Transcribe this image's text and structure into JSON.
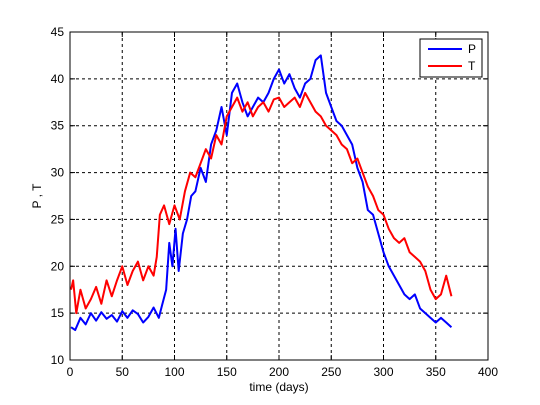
{
  "chart_data": {
    "type": "line",
    "xlabel": "time (days)",
    "ylabel": "P , T",
    "xlim": [
      0,
      400
    ],
    "ylim": [
      10,
      45
    ],
    "xticks": [
      "0",
      "50",
      "100",
      "150",
      "200",
      "250",
      "300",
      "350",
      "400"
    ],
    "yticks": [
      "10",
      "15",
      "20",
      "25",
      "30",
      "35",
      "40",
      "45"
    ],
    "grid": true,
    "legend_position": "top-right",
    "series": [
      {
        "name": "P",
        "color": "#0000ff",
        "x": [
          1,
          5,
          10,
          15,
          20,
          25,
          30,
          35,
          40,
          45,
          50,
          55,
          60,
          65,
          70,
          75,
          80,
          85,
          88,
          92,
          95,
          98,
          101,
          104,
          108,
          112,
          116,
          120,
          125,
          130,
          135,
          140,
          145,
          150,
          155,
          160,
          165,
          170,
          175,
          180,
          185,
          190,
          195,
          200,
          205,
          210,
          215,
          220,
          225,
          230,
          235,
          240,
          245,
          250,
          255,
          260,
          265,
          270,
          275,
          280,
          285,
          290,
          295,
          300,
          305,
          310,
          315,
          320,
          325,
          330,
          335,
          340,
          345,
          350,
          355,
          360,
          365
        ],
        "y": [
          13.5,
          13.2,
          14.5,
          13.8,
          15.0,
          14.2,
          15.1,
          14.4,
          14.8,
          14.1,
          15.2,
          14.5,
          15.3,
          14.9,
          14.0,
          14.6,
          15.6,
          14.5,
          15.8,
          17.5,
          22.5,
          20.0,
          24.0,
          19.5,
          23.5,
          25.0,
          27.5,
          28.0,
          30.5,
          29.0,
          33.0,
          34.5,
          37.0,
          34.0,
          38.5,
          39.5,
          37.5,
          36.0,
          37.0,
          38.0,
          37.5,
          38.5,
          40.0,
          41.0,
          39.5,
          40.5,
          39.0,
          38.0,
          39.5,
          40.0,
          42.0,
          42.5,
          38.5,
          37.0,
          35.5,
          35.0,
          34.0,
          33.0,
          30.5,
          29.0,
          26.0,
          25.5,
          23.5,
          21.5,
          20.0,
          19.0,
          18.0,
          17.0,
          16.5,
          17.0,
          15.5,
          15.0,
          14.5,
          14.0,
          14.5,
          14.0,
          13.5
        ]
      },
      {
        "name": "T",
        "color": "#ff0000",
        "x": [
          1,
          3,
          6,
          10,
          15,
          20,
          25,
          30,
          35,
          40,
          45,
          50,
          55,
          60,
          65,
          70,
          75,
          80,
          83,
          86,
          90,
          95,
          100,
          105,
          110,
          115,
          120,
          125,
          130,
          135,
          140,
          145,
          150,
          155,
          160,
          165,
          170,
          175,
          180,
          185,
          190,
          195,
          200,
          205,
          210,
          215,
          220,
          225,
          230,
          235,
          240,
          245,
          250,
          255,
          260,
          265,
          270,
          275,
          280,
          285,
          290,
          295,
          300,
          305,
          310,
          315,
          320,
          325,
          330,
          335,
          340,
          345,
          350,
          355,
          360,
          365
        ],
        "y": [
          17.5,
          18.5,
          15.0,
          17.5,
          15.5,
          16.5,
          17.8,
          16.0,
          18.5,
          16.8,
          18.5,
          20.0,
          18.0,
          19.5,
          20.5,
          18.5,
          20.0,
          19.0,
          21.0,
          25.5,
          26.5,
          24.5,
          26.5,
          25.0,
          28.0,
          30.0,
          29.5,
          31.0,
          32.5,
          31.5,
          34.0,
          33.0,
          36.0,
          37.0,
          38.0,
          36.5,
          37.5,
          36.0,
          37.0,
          37.5,
          36.5,
          37.8,
          38.0,
          37.0,
          37.5,
          38.0,
          37.0,
          38.5,
          37.5,
          36.5,
          36.0,
          35.0,
          34.5,
          34.0,
          33.0,
          32.5,
          31.0,
          31.5,
          30.0,
          28.5,
          27.5,
          26.0,
          25.5,
          24.0,
          23.0,
          22.5,
          23.0,
          21.5,
          21.0,
          20.5,
          19.5,
          17.5,
          16.5,
          17.0,
          19.0,
          16.8
        ]
      }
    ]
  }
}
